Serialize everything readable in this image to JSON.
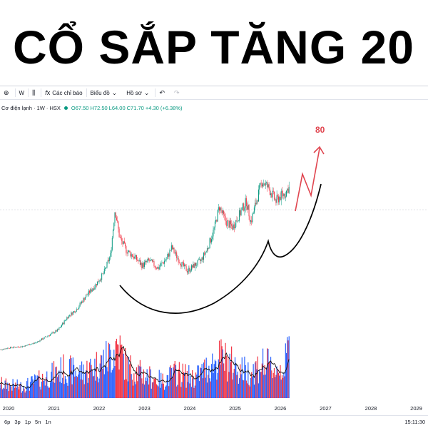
{
  "headline": "CỔ SẮP TĂNG 20",
  "toolbar": {
    "interval": "W",
    "indicators_label": "Các chỉ báo",
    "chart_type_label": "Biểu đồ",
    "profile_label": "Hồ sơ"
  },
  "legend": {
    "symbol": "Cơ điện lạnh · 1W · HSX",
    "open": "O67.50",
    "high": "H72.50",
    "low": "L64.00",
    "close": "C71.70",
    "change": "+4.30 (+6.38%)"
  },
  "annotation": {
    "target_label": "80"
  },
  "bottombar": {
    "ranges": [
      "6p",
      "3p",
      "1p",
      "5n",
      "1n"
    ],
    "clock": "15:11:30"
  },
  "colors": {
    "up": "#089981",
    "down": "#f23645",
    "vol_up": "#2962ff",
    "vol_down": "#f23645",
    "annotation": "#e0454f",
    "cup_curve": "#000000"
  },
  "chart_data": {
    "type": "candlestick",
    "x_ticks": [
      "2020",
      "2021",
      "2022",
      "2023",
      "2024",
      "2025",
      "2026",
      "2027",
      "2028",
      "2029"
    ],
    "price_path": [
      [
        2019.75,
        8
      ],
      [
        2020.0,
        9
      ],
      [
        2020.3,
        9.5
      ],
      [
        2020.6,
        11
      ],
      [
        2020.9,
        14
      ],
      [
        2021.1,
        16
      ],
      [
        2021.3,
        21
      ],
      [
        2021.5,
        24
      ],
      [
        2021.7,
        29
      ],
      [
        2021.9,
        33
      ],
      [
        2022.1,
        38
      ],
      [
        2022.25,
        45
      ],
      [
        2022.35,
        63
      ],
      [
        2022.45,
        52
      ],
      [
        2022.6,
        47
      ],
      [
        2022.8,
        44
      ],
      [
        2022.95,
        41
      ],
      [
        2023.1,
        43
      ],
      [
        2023.3,
        40
      ],
      [
        2023.5,
        44
      ],
      [
        2023.6,
        48
      ],
      [
        2023.8,
        42
      ],
      [
        2023.95,
        39
      ],
      [
        2024.1,
        41
      ],
      [
        2024.25,
        43
      ],
      [
        2024.4,
        48
      ],
      [
        2024.55,
        56
      ],
      [
        2024.65,
        64
      ],
      [
        2024.8,
        58
      ],
      [
        2024.95,
        56
      ],
      [
        2025.1,
        61
      ],
      [
        2025.25,
        66
      ],
      [
        2025.35,
        58
      ],
      [
        2025.5,
        68
      ],
      [
        2025.6,
        74
      ],
      [
        2025.75,
        71
      ],
      [
        2025.9,
        66
      ],
      [
        2026.0,
        68
      ],
      [
        2026.1,
        69
      ],
      [
        2026.2,
        72
      ]
    ],
    "last_close": 71.7,
    "volume_profile": [
      [
        2019.75,
        0.25
      ],
      [
        2020.3,
        0.2
      ],
      [
        2020.8,
        0.35
      ],
      [
        2021.2,
        0.5
      ],
      [
        2021.6,
        0.45
      ],
      [
        2021.9,
        0.55
      ],
      [
        2022.2,
        0.7
      ],
      [
        2022.4,
        0.95
      ],
      [
        2022.6,
        0.55
      ],
      [
        2023.0,
        0.4
      ],
      [
        2023.4,
        0.3
      ],
      [
        2023.7,
        0.45
      ],
      [
        2024.1,
        0.35
      ],
      [
        2024.5,
        0.6
      ],
      [
        2024.7,
        0.7
      ],
      [
        2025.0,
        0.55
      ],
      [
        2025.3,
        0.45
      ],
      [
        2025.6,
        0.6
      ],
      [
        2025.9,
        0.5
      ],
      [
        2026.1,
        0.55
      ],
      [
        2026.2,
        1.0
      ]
    ]
  }
}
